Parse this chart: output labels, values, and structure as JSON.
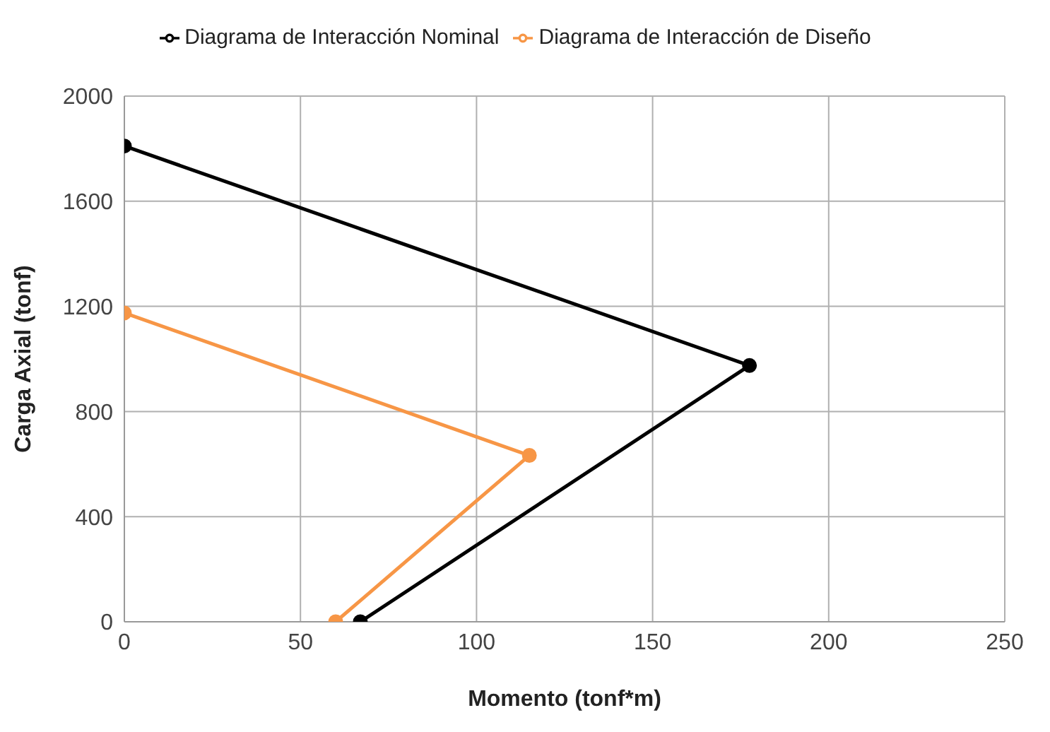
{
  "chart_data": {
    "type": "line",
    "xlabel": "Momento (tonf*m)",
    "ylabel": "Carga Axial (tonf)",
    "series": [
      {
        "name": "Diagrama de Interacción Nominal",
        "color": "#000000",
        "x": [
          0,
          177.5,
          67
        ],
        "values": [
          1810,
          975,
          0
        ]
      },
      {
        "name": "Diagrama de Interacción de Diseño",
        "color": "#f79646",
        "x": [
          0,
          115,
          60
        ],
        "values": [
          1175,
          633,
          0
        ]
      }
    ],
    "xlim": [
      0,
      250
    ],
    "xticks": [
      0,
      50,
      100,
      150,
      200,
      250
    ],
    "ylim": [
      0,
      2000
    ],
    "yticks": [
      0,
      400,
      800,
      1200,
      1600,
      2000
    ],
    "grid": true,
    "legend": "top",
    "marker": "circle",
    "line_style": "solid"
  }
}
